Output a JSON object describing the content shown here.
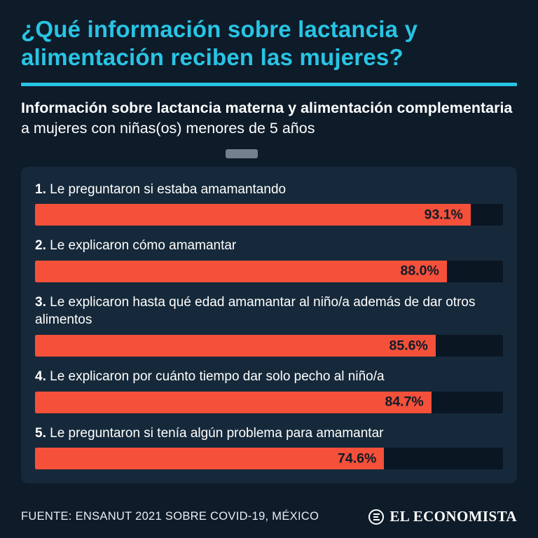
{
  "header": {
    "title_lines": [
      "¿Qué información sobre lactancia y",
      "alimentación reciben las mujeres?"
    ],
    "subtitle_bold": "Información sobre lactancia materna y alimentación complementaria",
    "subtitle_regular": " a mujeres con niñas(os) menores de 5 años"
  },
  "chart_data": {
    "type": "bar",
    "orientation": "horizontal",
    "categories": [
      "1. Le preguntaron si estaba amamantando",
      "2. Le explicaron cómo amamantar",
      "3. Le explicaron hasta qué edad amamantar al niño/a además de dar otros alimentos",
      "4. Le explicaron por cuánto tiempo dar solo pecho al niño/a",
      "5. Le preguntaron si tenía algún problema para amamantar"
    ],
    "values": [
      93.1,
      88.0,
      85.6,
      84.7,
      74.6
    ],
    "value_labels": [
      "93.1%",
      "88.0%",
      "85.6%",
      "84.7%",
      "74.6%"
    ],
    "xlim": [
      0,
      100
    ],
    "grid": false,
    "legend": false,
    "bar_color": "#f4503a",
    "track_color": "#0b1623",
    "value_text_color": "#0e1c2a"
  },
  "footer": {
    "source": "FUENTE: ENSANUT 2021 SOBRE COVID-19, MÉXICO",
    "brand": "EL ECONOMISTA"
  },
  "colors": {
    "background": "#0e1b29",
    "panel": "#16293a",
    "accent_cyan": "#28c4e4",
    "handle_gray": "#75808e"
  }
}
